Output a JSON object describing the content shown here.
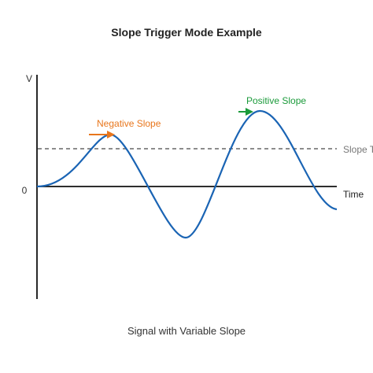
{
  "diagram": {
    "title": "Slope Trigger Mode Example",
    "caption": "Signal with Variable Slope",
    "y_axis_label": "V",
    "origin_label": "0",
    "x_axis_label": "Time",
    "trigger_level_label": "Slope Trigger",
    "negative_slope_label": "Negative Slope",
    "positive_slope_label": "Positive Slope",
    "colors": {
      "signal": "#1a64b4",
      "axis": "#111111",
      "trigger_line": "#666666",
      "negative_slope": "#e8761c",
      "positive_slope": "#1a9a3a"
    }
  }
}
